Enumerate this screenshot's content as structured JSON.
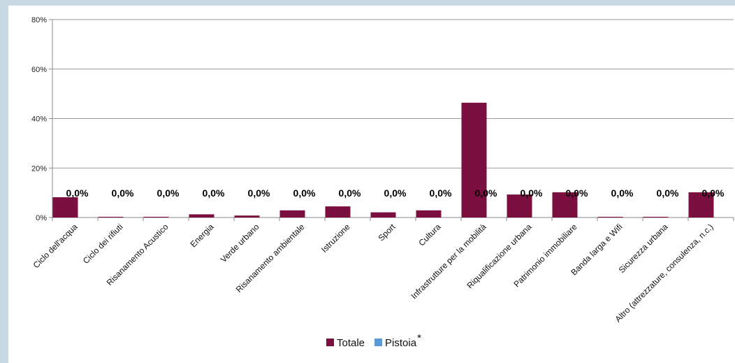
{
  "chart_data": {
    "type": "bar",
    "categories": [
      "Ciclo dell'acqua",
      "Ciclo dei rifiuti",
      "Risanamento Acustico",
      "Energia",
      "Verde urbano",
      "Risanamento ambientale",
      "Istruzione",
      "Sport",
      "Cultura",
      "Infrastrutture per la mobilità",
      "Riqualificazione urbana",
      "Patrimonio immobiliare",
      "Banda larga e Wifi",
      "Sicurezza urbana",
      "Altro (attrezzature, consulenza, n.c.)"
    ],
    "series": [
      {
        "name": "Totale",
        "color": "#7b1040",
        "values": [
          8.2,
          0.3,
          0.3,
          1.3,
          0.8,
          2.9,
          4.5,
          2.1,
          2.9,
          46.4,
          9.3,
          10.2,
          0.3,
          0.3,
          10.2
        ]
      },
      {
        "name": "Pistoia",
        "color": "#5b9bd5",
        "values": [
          0,
          0,
          0,
          0,
          0,
          0,
          0,
          0,
          0,
          0,
          0,
          0,
          0,
          0,
          0
        ],
        "data_labels": [
          "0,0%",
          "0,0%",
          "0,0%",
          "0,0%",
          "0,0%",
          "0,0%",
          "0,0%",
          "0,0%",
          "0,0%",
          "0,0%",
          "0,0%",
          "0,0%",
          "0,0%",
          "0,0%",
          "0,0%"
        ]
      }
    ],
    "ylim": [
      0,
      80
    ],
    "yticks": [
      0,
      20,
      40,
      60,
      80
    ],
    "ytick_labels": [
      "0%",
      "20%",
      "40%",
      "60%",
      "80%"
    ],
    "grid": true,
    "legend_position": "bottom",
    "legend_suffix": "*",
    "title": "",
    "xlabel": "",
    "ylabel": ""
  }
}
